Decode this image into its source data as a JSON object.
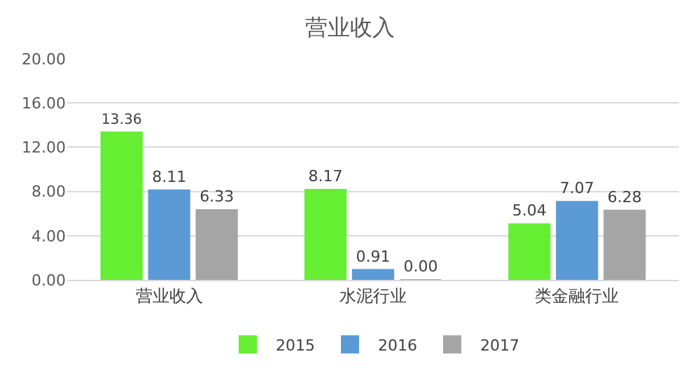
{
  "chart_data": {
    "type": "bar",
    "title": "营业收入",
    "categories": [
      "营业收入",
      "水泥行业",
      "类金融行业"
    ],
    "series": [
      {
        "name": "2015",
        "color": "#66ee33",
        "values": [
          13.36,
          8.17,
          5.04
        ],
        "value_labels": [
          "13.36",
          "8.17",
          "5.04"
        ]
      },
      {
        "name": "2016",
        "color": "#5b9bd5",
        "values": [
          8.11,
          0.91,
          7.07
        ],
        "value_labels": [
          "8.11",
          "0.91",
          "7.07"
        ]
      },
      {
        "name": "2017",
        "color": "#a5a5a5",
        "values": [
          6.33,
          0.0,
          6.28
        ],
        "value_labels": [
          "6.33",
          "0.00",
          "6.28"
        ]
      }
    ],
    "ylim": [
      0,
      20
    ],
    "yticks": [
      {
        "value": 0,
        "label": "0.00"
      },
      {
        "value": 4,
        "label": "4.00"
      },
      {
        "value": 8,
        "label": "8.00"
      },
      {
        "value": 12,
        "label": "12.00"
      },
      {
        "value": 16,
        "label": "16.00"
      },
      {
        "value": 20,
        "label": "20.00"
      }
    ],
    "grid": "y",
    "legend": "bottom"
  }
}
